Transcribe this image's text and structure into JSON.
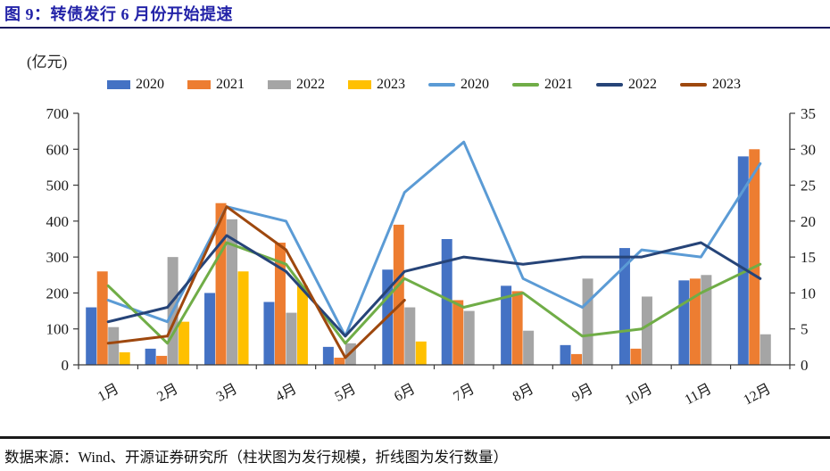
{
  "page": {
    "title": "图 9：转债发行 6 月份开始提速",
    "unit_label": "(亿元)",
    "source_note": "数据来源：Wind、开源证券研究所（柱状图为发行规模，折线图为发行数量）"
  },
  "colors": {
    "title_text": "#2323a8",
    "title_rule": "#18185e",
    "footer_rule": "#1a1a1a",
    "axis_line": "#3a3a3a",
    "axis_text": "#1a1a1a"
  },
  "chart_data": {
    "type": "bar",
    "subtype": "combo-bar-line-dual-axis",
    "categories": [
      "1月",
      "2月",
      "3月",
      "4月",
      "5月",
      "6月",
      "7月",
      "8月",
      "9月",
      "10月",
      "11月",
      "12月"
    ],
    "left_axis": {
      "label": "亿元",
      "meaning": "柱状图为发行规模",
      "min": 0,
      "max": 700,
      "step": 100
    },
    "right_axis": {
      "meaning": "折线图为发行数量",
      "min": 0,
      "max": 35,
      "step": 5
    },
    "grid": "off",
    "legend_position": "top-center",
    "bar_series": [
      {
        "name": "2020",
        "color": "#4472c4",
        "axis": "left",
        "values": [
          160,
          45,
          200,
          175,
          50,
          265,
          350,
          220,
          55,
          325,
          235,
          580
        ]
      },
      {
        "name": "2021",
        "color": "#ed7d31",
        "axis": "left",
        "values": [
          260,
          25,
          450,
          340,
          20,
          390,
          180,
          205,
          30,
          45,
          240,
          600
        ]
      },
      {
        "name": "2022",
        "color": "#a5a5a5",
        "axis": "left",
        "values": [
          105,
          300,
          405,
          145,
          60,
          160,
          150,
          95,
          240,
          190,
          250,
          85
        ]
      },
      {
        "name": "2023",
        "color": "#ffc000",
        "axis": "left",
        "values": [
          35,
          120,
          260,
          220,
          0,
          65,
          null,
          null,
          null,
          null,
          null,
          null
        ]
      }
    ],
    "line_series": [
      {
        "name": "2020",
        "color": "#5b9bd5",
        "axis": "right",
        "values": [
          9,
          6,
          22,
          20,
          4,
          24,
          31,
          12,
          8,
          16,
          15,
          28
        ]
      },
      {
        "name": "2021",
        "color": "#70ad47",
        "axis": "right",
        "values": [
          11,
          3,
          17,
          14,
          3,
          12,
          8,
          10,
          4,
          5,
          10,
          14
        ]
      },
      {
        "name": "2022",
        "color": "#264478",
        "axis": "right",
        "values": [
          6,
          8,
          18,
          13,
          4,
          13,
          15,
          14,
          15,
          15,
          17,
          12
        ]
      },
      {
        "name": "2023",
        "color": "#9e480e",
        "axis": "right",
        "values": [
          3,
          4,
          22,
          16,
          1,
          9,
          null,
          null,
          null,
          null,
          null,
          null
        ]
      }
    ]
  }
}
